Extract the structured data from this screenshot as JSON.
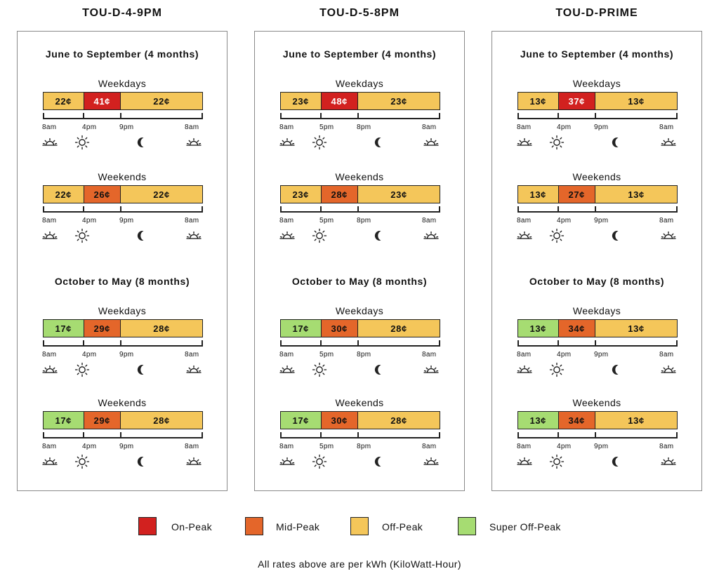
{
  "colors": {
    "on_peak": "#d2211f",
    "mid_peak": "#e4662a",
    "off_peak": "#f4c65a",
    "super_off_peak": "#a6dc72"
  },
  "plans": [
    {
      "title": "TOU-D-4-9PM",
      "seasons": [
        {
          "title": "June to September (4 months)",
          "days": [
            {
              "label": "Weekdays",
              "times": [
                "8am",
                "4pm",
                "9pm",
                "8am"
              ],
              "segments": [
                {
                  "label": "22¢",
                  "level": "off_peak"
                },
                {
                  "label": "41¢",
                  "level": "on_peak"
                },
                {
                  "label": "22¢",
                  "level": "off_peak"
                }
              ]
            },
            {
              "label": "Weekends",
              "times": [
                "8am",
                "4pm",
                "9pm",
                "8am"
              ],
              "segments": [
                {
                  "label": "22¢",
                  "level": "off_peak"
                },
                {
                  "label": "26¢",
                  "level": "mid_peak"
                },
                {
                  "label": "22¢",
                  "level": "off_peak"
                }
              ]
            }
          ]
        },
        {
          "title": "October to May (8 months)",
          "days": [
            {
              "label": "Weekdays",
              "times": [
                "8am",
                "4pm",
                "9pm",
                "8am"
              ],
              "segments": [
                {
                  "label": "17¢",
                  "level": "super_off_peak"
                },
                {
                  "label": "29¢",
                  "level": "mid_peak"
                },
                {
                  "label": "28¢",
                  "level": "off_peak"
                }
              ]
            },
            {
              "label": "Weekends",
              "times": [
                "8am",
                "4pm",
                "9pm",
                "8am"
              ],
              "segments": [
                {
                  "label": "17¢",
                  "level": "super_off_peak"
                },
                {
                  "label": "29¢",
                  "level": "mid_peak"
                },
                {
                  "label": "28¢",
                  "level": "off_peak"
                }
              ]
            }
          ]
        }
      ]
    },
    {
      "title": "TOU-D-5-8PM",
      "seasons": [
        {
          "title": "June to September (4 months)",
          "days": [
            {
              "label": "Weekdays",
              "times": [
                "8am",
                "5pm",
                "8pm",
                "8am"
              ],
              "segments": [
                {
                  "label": "23¢",
                  "level": "off_peak"
                },
                {
                  "label": "48¢",
                  "level": "on_peak"
                },
                {
                  "label": "23¢",
                  "level": "off_peak"
                }
              ]
            },
            {
              "label": "Weekends",
              "times": [
                "8am",
                "5pm",
                "8pm",
                "8am"
              ],
              "segments": [
                {
                  "label": "23¢",
                  "level": "off_peak"
                },
                {
                  "label": "28¢",
                  "level": "mid_peak"
                },
                {
                  "label": "23¢",
                  "level": "off_peak"
                }
              ]
            }
          ]
        },
        {
          "title": "October to May (8 months)",
          "days": [
            {
              "label": "Weekdays",
              "times": [
                "8am",
                "5pm",
                "8pm",
                "8am"
              ],
              "segments": [
                {
                  "label": "17¢",
                  "level": "super_off_peak"
                },
                {
                  "label": "30¢",
                  "level": "mid_peak"
                },
                {
                  "label": "28¢",
                  "level": "off_peak"
                }
              ]
            },
            {
              "label": "Weekends",
              "times": [
                "8am",
                "5pm",
                "8pm",
                "8am"
              ],
              "segments": [
                {
                  "label": "17¢",
                  "level": "super_off_peak"
                },
                {
                  "label": "30¢",
                  "level": "mid_peak"
                },
                {
                  "label": "28¢",
                  "level": "off_peak"
                }
              ]
            }
          ]
        }
      ]
    },
    {
      "title": "TOU-D-PRIME",
      "seasons": [
        {
          "title": "June to September (4 months)",
          "days": [
            {
              "label": "Weekdays",
              "times": [
                "8am",
                "4pm",
                "9pm",
                "8am"
              ],
              "segments": [
                {
                  "label": "13¢",
                  "level": "off_peak"
                },
                {
                  "label": "37¢",
                  "level": "on_peak"
                },
                {
                  "label": "13¢",
                  "level": "off_peak"
                }
              ]
            },
            {
              "label": "Weekends",
              "times": [
                "8am",
                "4pm",
                "9pm",
                "8am"
              ],
              "segments": [
                {
                  "label": "13¢",
                  "level": "off_peak"
                },
                {
                  "label": "27¢",
                  "level": "mid_peak"
                },
                {
                  "label": "13¢",
                  "level": "off_peak"
                }
              ]
            }
          ]
        },
        {
          "title": "October to May (8 months)",
          "days": [
            {
              "label": "Weekdays",
              "times": [
                "8am",
                "4pm",
                "9pm",
                "8am"
              ],
              "segments": [
                {
                  "label": "13¢",
                  "level": "super_off_peak"
                },
                {
                  "label": "34¢",
                  "level": "mid_peak"
                },
                {
                  "label": "13¢",
                  "level": "off_peak"
                }
              ]
            },
            {
              "label": "Weekends",
              "times": [
                "8am",
                "4pm",
                "9pm",
                "8am"
              ],
              "segments": [
                {
                  "label": "13¢",
                  "level": "super_off_peak"
                },
                {
                  "label": "34¢",
                  "level": "mid_peak"
                },
                {
                  "label": "13¢",
                  "level": "off_peak"
                }
              ]
            }
          ]
        }
      ]
    }
  ],
  "icons": [
    "sunrise-icon",
    "sun-icon",
    "moon-icon",
    "sunrise-icon"
  ],
  "legend": [
    {
      "label": "On-Peak",
      "level": "on_peak"
    },
    {
      "label": "Mid-Peak",
      "level": "mid_peak"
    },
    {
      "label": "Off-Peak",
      "level": "off_peak"
    },
    {
      "label": "Super Off-Peak",
      "level": "super_off_peak"
    }
  ],
  "footnote": "All rates above are per kWh (KiloWatt-Hour)"
}
